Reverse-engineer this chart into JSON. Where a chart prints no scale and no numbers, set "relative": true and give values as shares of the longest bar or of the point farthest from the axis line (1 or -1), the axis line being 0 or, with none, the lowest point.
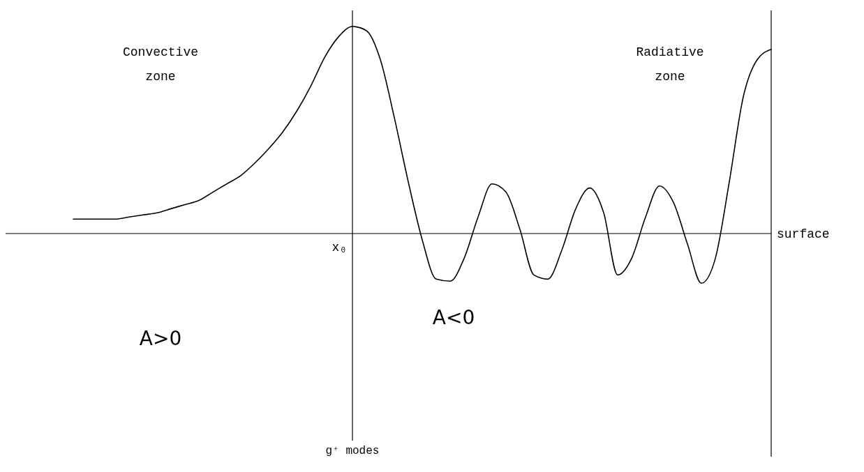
{
  "chart_data": {
    "type": "line",
    "relative": true,
    "categories": [
      null,
      null,
      null,
      null,
      null,
      null,
      null,
      null,
      null,
      null,
      null,
      null,
      null,
      null,
      null,
      null,
      null,
      null,
      null,
      null,
      null,
      null,
      null,
      null,
      null,
      null,
      null,
      null,
      null,
      null,
      null,
      null,
      null,
      null,
      null,
      null,
      null,
      null,
      null,
      null,
      null,
      null,
      null,
      null,
      null,
      null,
      null,
      null,
      null,
      null,
      null
    ],
    "xlabel": "surface",
    "series": [
      {
        "color": "#000000",
        "values": [
          0.07,
          0.07,
          0.07,
          0.07,
          0.08,
          0.09,
          0.1,
          0.12,
          0.14,
          0.16,
          0.2,
          0.24,
          0.28,
          0.34,
          0.41,
          0.49,
          0.59,
          0.71,
          0.85,
          0.95,
          1,
          0.98,
          0.84,
          0.56,
          0.25,
          -0.03,
          -0.22,
          -0.23,
          -0.12,
          0.08,
          0.24,
          0.2,
          0.02,
          -0.2,
          -0.22,
          -0.08,
          0.12,
          0.22,
          0.1,
          -0.2,
          -0.12,
          0.08,
          0.23,
          0.15,
          -0.05,
          -0.24,
          -0.12,
          0.25,
          0.66,
          0.84,
          0.89
        ]
      }
    ],
    "ref_lines": [
      {
        "axis": "x",
        "value": "x₀",
        "label": "g⁺ modes"
      }
    ],
    "annotations": [
      "Convective zone",
      "Radiative zone",
      "A>0",
      "A<0"
    ]
  }
}
